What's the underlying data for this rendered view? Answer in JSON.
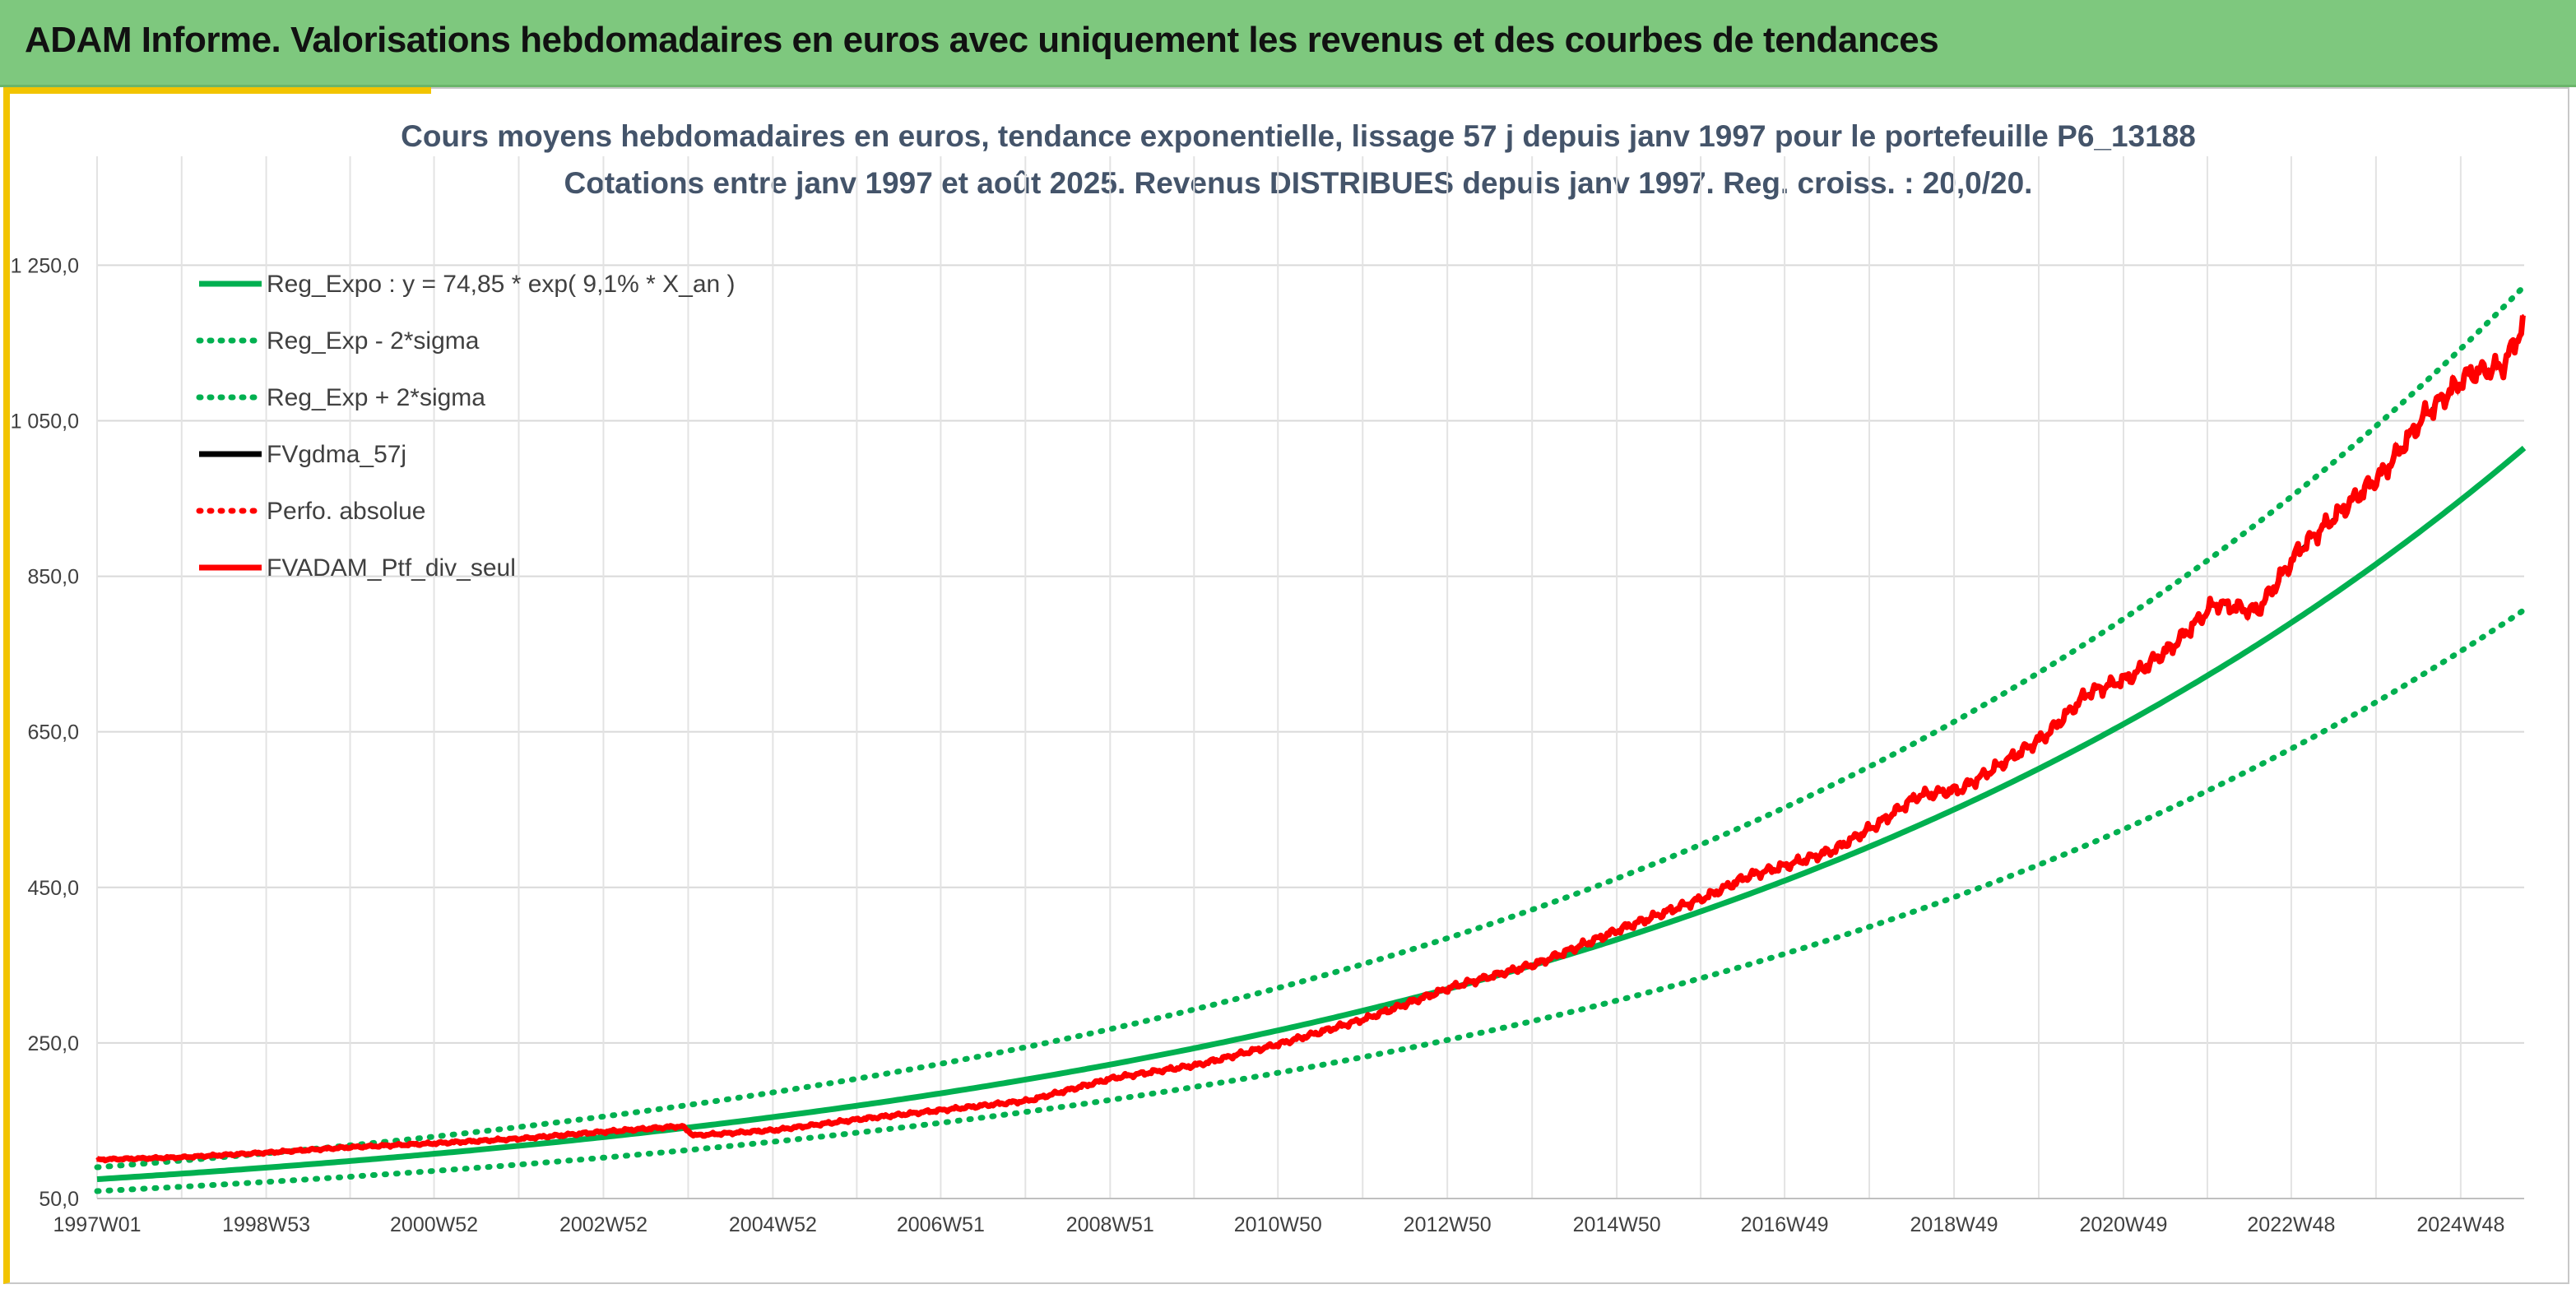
{
  "header": {
    "title": "ADAM Informe. Valorisations hebdomadaires en euros avec uniquement les revenus et des courbes de tendances"
  },
  "colors": {
    "banner": "#7ec87e",
    "accent_border": "#f2c400",
    "trend_green": "#00b050",
    "fv_black": "#000000",
    "perf_red": "#ff0000",
    "title_text": "#44546a"
  },
  "chart_data": {
    "type": "line",
    "title": "Cours moyens hebdomadaires en euros, tendance exponentielle, lissage 57 j depuis janv 1997 pour le portefeuille P6_13188",
    "subtitle": "Cotations entre janv 1997 et août 2025. Revenus DISTRIBUES depuis janv 1997. Reg. croiss. : 20,0/20.",
    "x_tick_labels": [
      "1997W01",
      "1998W53",
      "2000W52",
      "2002W52",
      "2004W52",
      "2006W51",
      "2008W51",
      "2010W50",
      "2012W50",
      "2014W50",
      "2016W49",
      "2018W49",
      "2020W49",
      "2022W48",
      "2024W48"
    ],
    "x_range_years": [
      1997.0,
      2025.65
    ],
    "y_tick_labels": [
      "50,0",
      "250,0",
      "450,0",
      "650,0",
      "850,0",
      "1 050,0",
      "1 250,0"
    ],
    "ylim": [
      50,
      1390
    ],
    "grid": true,
    "legend_position": "top-left",
    "regression": {
      "a": 74.85,
      "rate": 0.091,
      "sigma_factor": 0.205
    },
    "series": [
      {
        "name": "Reg_Expo : y = 74,85 * exp( 9,1% *  X_an )",
        "color": "#00b050",
        "style": "solid",
        "formula": "74.85*exp(0.091*t)"
      },
      {
        "name": "Reg_Exp - 2*sigma",
        "color": "#00b050",
        "style": "dotted",
        "formula": "74.85*exp(0.091*t)*(1-0.205)"
      },
      {
        "name": "Reg_Exp + 2*sigma",
        "color": "#00b050",
        "style": "dotted",
        "formula": "74.85*exp(0.091*t)*(1+0.205)"
      },
      {
        "name": "FVgdma_57j",
        "color": "#000000",
        "style": "solid"
      },
      {
        "name": "Perfo. absolue",
        "color": "#ff0000",
        "style": "dotted"
      },
      {
        "name": "FVADAM_Ptf_div_seul",
        "color": "#ff0000",
        "style": "solid"
      }
    ],
    "portfolio_points": [
      [
        1997.0,
        100
      ],
      [
        1998.0,
        103
      ],
      [
        1999.0,
        109
      ],
      [
        2000.0,
        116
      ],
      [
        2001.0,
        121
      ],
      [
        2002.0,
        127
      ],
      [
        2003.0,
        136
      ],
      [
        2003.9,
        143
      ],
      [
        2004.05,
        131
      ],
      [
        2005.0,
        138
      ],
      [
        2006.0,
        152
      ],
      [
        2007.0,
        164
      ],
      [
        2008.0,
        176
      ],
      [
        2009.0,
        205
      ],
      [
        2010.0,
        222
      ],
      [
        2011.0,
        250
      ],
      [
        2012.0,
        282
      ],
      [
        2013.0,
        322
      ],
      [
        2014.0,
        352
      ],
      [
        2015.0,
        397
      ],
      [
        2016.0,
        438
      ],
      [
        2016.5,
        465
      ],
      [
        2017.0,
        480
      ],
      [
        2017.5,
        498
      ],
      [
        2018.0,
        530
      ],
      [
        2018.5,
        568
      ],
      [
        2019.0,
        576
      ],
      [
        2019.5,
        610
      ],
      [
        2020.0,
        645
      ],
      [
        2020.5,
        700
      ],
      [
        2021.0,
        720
      ],
      [
        2021.5,
        760
      ],
      [
        2022.0,
        815
      ],
      [
        2022.5,
        805
      ],
      [
        2023.0,
        885
      ],
      [
        2023.5,
        935
      ],
      [
        2024.0,
        985
      ],
      [
        2024.5,
        1060
      ],
      [
        2025.0,
        1110
      ],
      [
        2025.4,
        1120
      ],
      [
        2025.65,
        1175
      ]
    ]
  }
}
